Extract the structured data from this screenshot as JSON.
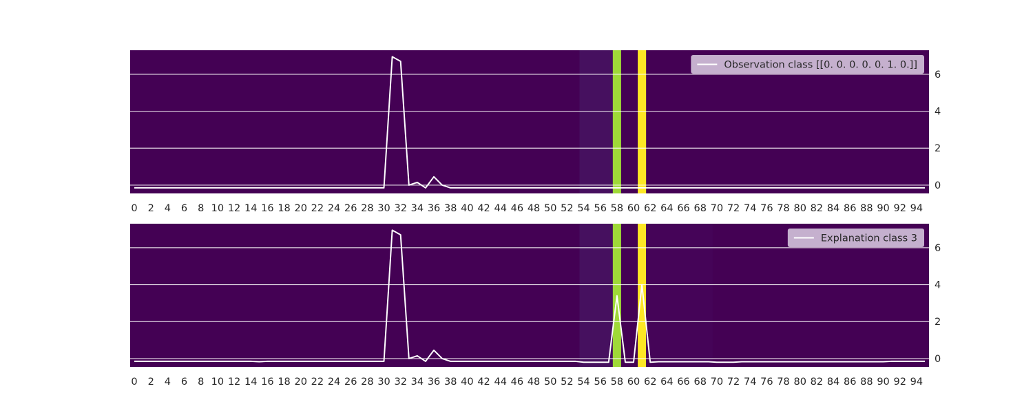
{
  "chart_data": [
    {
      "type": "line",
      "background": "heatmap",
      "legend": "Observation class [[0. 0. 0. 0. 0. 1. 0.]]",
      "legend_position": "top-right",
      "x_ticks": [
        0,
        2,
        4,
        6,
        8,
        10,
        12,
        14,
        16,
        18,
        20,
        22,
        24,
        26,
        28,
        30,
        32,
        34,
        36,
        38,
        40,
        42,
        44,
        46,
        48,
        50,
        52,
        54,
        56,
        58,
        60,
        62,
        64,
        66,
        68,
        70,
        72,
        74,
        76,
        78,
        80,
        82,
        84,
        86,
        88,
        90,
        92,
        94
      ],
      "y_ticks": [
        0,
        2,
        4,
        6
      ],
      "ylim": [
        -0.45,
        7.3
      ],
      "xlim": [
        -0.5,
        95.5
      ],
      "grid": true,
      "line_color": "#ffffff",
      "x": [
        0,
        1,
        2,
        3,
        4,
        5,
        6,
        7,
        8,
        9,
        10,
        11,
        12,
        13,
        14,
        15,
        16,
        17,
        18,
        19,
        20,
        21,
        22,
        23,
        24,
        25,
        26,
        27,
        28,
        29,
        30,
        31,
        32,
        33,
        34,
        35,
        36,
        37,
        38,
        39,
        40,
        41,
        42,
        43,
        44,
        45,
        46,
        47,
        48,
        49,
        50,
        51,
        52,
        53,
        54,
        55,
        56,
        57,
        58,
        59,
        60,
        61,
        62,
        63,
        64,
        65,
        66,
        67,
        68,
        69,
        70,
        71,
        72,
        73,
        74,
        75,
        76,
        77,
        78,
        79,
        80,
        81,
        82,
        83,
        84,
        85,
        86,
        87,
        88,
        89,
        90,
        91,
        92,
        93,
        94,
        95
      ],
      "values": [
        -0.15,
        -0.15,
        -0.15,
        -0.15,
        -0.15,
        -0.15,
        -0.15,
        -0.15,
        -0.15,
        -0.15,
        -0.15,
        -0.15,
        -0.15,
        -0.15,
        -0.15,
        -0.15,
        -0.15,
        -0.15,
        -0.15,
        -0.15,
        -0.15,
        -0.15,
        -0.15,
        -0.15,
        -0.15,
        -0.15,
        -0.15,
        -0.15,
        -0.15,
        -0.15,
        -0.15,
        6.95,
        6.7,
        0.0,
        0.15,
        -0.15,
        0.45,
        0.0,
        -0.15,
        -0.15,
        -0.15,
        -0.15,
        -0.15,
        -0.15,
        -0.15,
        -0.15,
        -0.15,
        -0.15,
        -0.15,
        -0.15,
        -0.15,
        -0.15,
        -0.15,
        -0.15,
        -0.15,
        -0.15,
        -0.15,
        -0.15,
        -0.15,
        -0.15,
        -0.15,
        -0.15,
        -0.15,
        -0.15,
        -0.15,
        -0.15,
        -0.15,
        -0.15,
        -0.15,
        -0.15,
        -0.15,
        -0.15,
        -0.15,
        -0.15,
        -0.15,
        -0.15,
        -0.15,
        -0.15,
        -0.15,
        -0.15,
        -0.15,
        -0.15,
        -0.15,
        -0.15,
        -0.15,
        -0.15,
        -0.15,
        -0.15,
        -0.15,
        -0.15,
        -0.15,
        -0.15,
        -0.15,
        -0.15,
        -0.15,
        -0.15
      ],
      "heat_bands": [
        {
          "from": 53.5,
          "to": 57.5,
          "color": "#46105f"
        },
        {
          "from": 57.5,
          "to": 58.5,
          "color": "#9fd938"
        },
        {
          "from": 60.5,
          "to": 61.5,
          "color": "#fde725"
        }
      ],
      "base_color": "#440154"
    },
    {
      "type": "line",
      "background": "heatmap",
      "legend": "Explanation class 3",
      "legend_position": "top-right",
      "x_ticks": [
        0,
        2,
        4,
        6,
        8,
        10,
        12,
        14,
        16,
        18,
        20,
        22,
        24,
        26,
        28,
        30,
        32,
        34,
        36,
        38,
        40,
        42,
        44,
        46,
        48,
        50,
        52,
        54,
        56,
        58,
        60,
        62,
        64,
        66,
        68,
        70,
        72,
        74,
        76,
        78,
        80,
        82,
        84,
        86,
        88,
        90,
        92,
        94
      ],
      "y_ticks": [
        0,
        2,
        4,
        6
      ],
      "ylim": [
        -0.45,
        7.3
      ],
      "xlim": [
        -0.5,
        95.5
      ],
      "grid": true,
      "line_color": "#ffffff",
      "x": [
        0,
        1,
        2,
        3,
        4,
        5,
        6,
        7,
        8,
        9,
        10,
        11,
        12,
        13,
        14,
        15,
        16,
        17,
        18,
        19,
        20,
        21,
        22,
        23,
        24,
        25,
        26,
        27,
        28,
        29,
        30,
        31,
        32,
        33,
        34,
        35,
        36,
        37,
        38,
        39,
        40,
        41,
        42,
        43,
        44,
        45,
        46,
        47,
        48,
        49,
        50,
        51,
        52,
        53,
        54,
        55,
        56,
        57,
        58,
        59,
        60,
        61,
        62,
        63,
        64,
        65,
        66,
        67,
        68,
        69,
        70,
        71,
        72,
        73,
        74,
        75,
        76,
        77,
        78,
        79,
        80,
        81,
        82,
        83,
        84,
        85,
        86,
        87,
        88,
        89,
        90,
        91,
        92,
        93,
        94,
        95
      ],
      "values": [
        -0.15,
        -0.15,
        -0.15,
        -0.15,
        -0.15,
        -0.15,
        -0.15,
        -0.15,
        -0.15,
        -0.15,
        -0.15,
        -0.15,
        -0.15,
        -0.15,
        -0.15,
        -0.17,
        -0.15,
        -0.15,
        -0.15,
        -0.15,
        -0.15,
        -0.15,
        -0.15,
        -0.15,
        -0.15,
        -0.15,
        -0.15,
        -0.15,
        -0.15,
        -0.15,
        -0.15,
        6.95,
        6.7,
        0.0,
        0.15,
        -0.15,
        0.45,
        0.0,
        -0.15,
        -0.15,
        -0.15,
        -0.15,
        -0.15,
        -0.15,
        -0.15,
        -0.15,
        -0.15,
        -0.15,
        -0.15,
        -0.15,
        -0.15,
        -0.15,
        -0.15,
        -0.15,
        -0.2,
        -0.2,
        -0.2,
        -0.2,
        3.4,
        -0.2,
        -0.2,
        4.0,
        -0.2,
        -0.17,
        -0.17,
        -0.17,
        -0.17,
        -0.17,
        -0.17,
        -0.17,
        -0.2,
        -0.2,
        -0.2,
        -0.17,
        -0.17,
        -0.17,
        -0.17,
        -0.17,
        -0.17,
        -0.17,
        -0.17,
        -0.17,
        -0.17,
        -0.17,
        -0.17,
        -0.17,
        -0.17,
        -0.17,
        -0.17,
        -0.17,
        -0.17,
        -0.15,
        -0.15,
        -0.15,
        -0.15,
        -0.15
      ],
      "heat_bands": [
        {
          "from": 53.5,
          "to": 57.5,
          "color": "#46105f"
        },
        {
          "from": 57.5,
          "to": 58.5,
          "color": "#9fd938"
        },
        {
          "from": 60.5,
          "to": 61.5,
          "color": "#fde725"
        },
        {
          "from": 61.5,
          "to": 69.5,
          "color": "#450458"
        }
      ],
      "base_color": "#440154"
    }
  ]
}
